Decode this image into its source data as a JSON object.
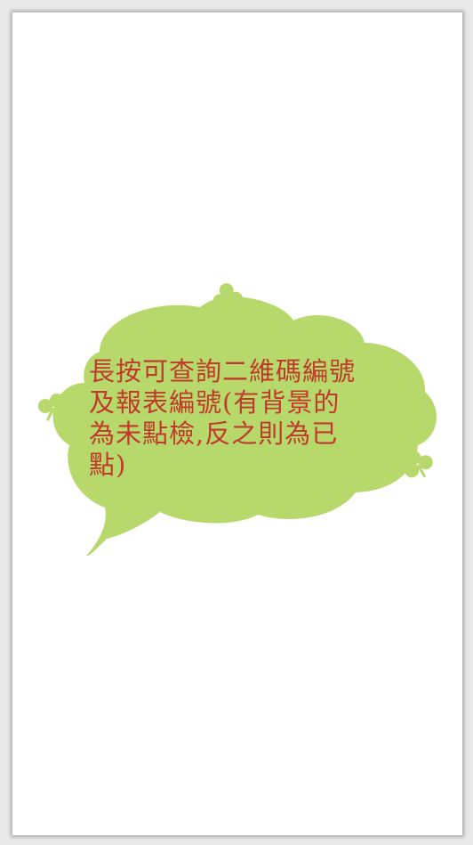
{
  "hint": {
    "text": "長按可查詢二維碼編號及報表編號(有背景的為未點檢,反之則為已點)"
  },
  "colors": {
    "bubble": "#b7d96c",
    "text": "#c0392b",
    "clover": "#b7d96c",
    "background": "#ffffff"
  },
  "icons": [
    "speech-bubble",
    "clover-icon"
  ]
}
